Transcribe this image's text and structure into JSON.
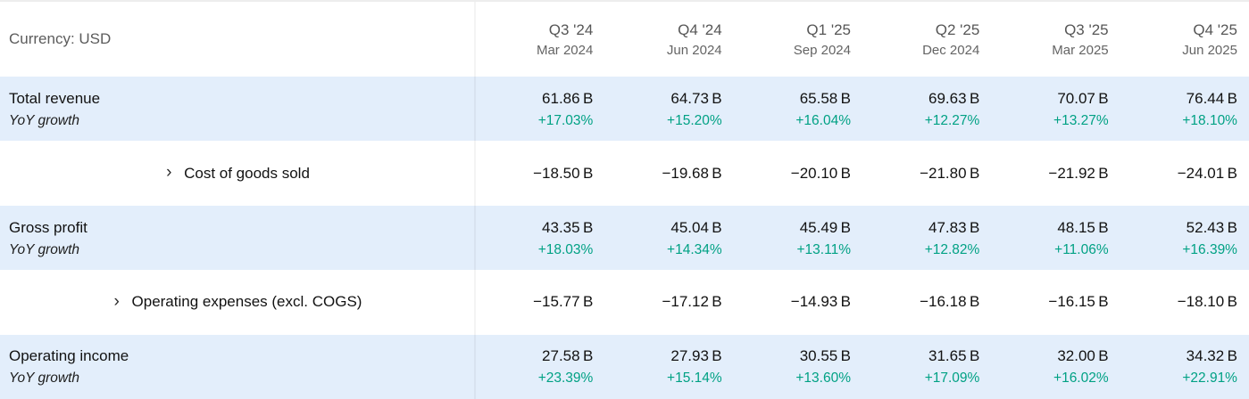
{
  "header": {
    "currency_label": "Currency: USD",
    "columns": [
      {
        "quarter": "Q3 '24",
        "date": "Mar 2024"
      },
      {
        "quarter": "Q4 '24",
        "date": "Jun 2024"
      },
      {
        "quarter": "Q1 '25",
        "date": "Sep 2024"
      },
      {
        "quarter": "Q2 '25",
        "date": "Dec 2024"
      },
      {
        "quarter": "Q3 '25",
        "date": "Mar 2025"
      },
      {
        "quarter": "Q4 '25",
        "date": "Jun 2025"
      }
    ]
  },
  "rows": [
    {
      "label": "Total revenue",
      "sub_label": "YoY growth",
      "values": [
        "61.86 B",
        "64.73 B",
        "65.58 B",
        "69.63 B",
        "70.07 B",
        "76.44 B"
      ],
      "growth": [
        "+17.03%",
        "+15.20%",
        "+16.04%",
        "+12.27%",
        "+13.27%",
        "+18.10%"
      ]
    },
    {
      "label": "Cost of goods sold",
      "chevron": "›",
      "values": [
        "−18.50 B",
        "−19.68 B",
        "−20.10 B",
        "−21.80 B",
        "−21.92 B",
        "−24.01 B"
      ]
    },
    {
      "label": "Gross profit",
      "sub_label": "YoY growth",
      "values": [
        "43.35 B",
        "45.04 B",
        "45.49 B",
        "47.83 B",
        "48.15 B",
        "52.43 B"
      ],
      "growth": [
        "+18.03%",
        "+14.34%",
        "+13.11%",
        "+12.82%",
        "+11.06%",
        "+16.39%"
      ]
    },
    {
      "label": "Operating expenses (excl. COGS)",
      "chevron": "›",
      "values": [
        "−15.77 B",
        "−17.12 B",
        "−14.93 B",
        "−16.18 B",
        "−16.15 B",
        "−18.10 B"
      ]
    },
    {
      "label": "Operating income",
      "sub_label": "YoY growth",
      "values": [
        "27.58 B",
        "27.93 B",
        "30.55 B",
        "31.65 B",
        "32.00 B",
        "34.32 B"
      ],
      "growth": [
        "+23.39%",
        "+15.14%",
        "+13.60%",
        "+17.09%",
        "+16.02%",
        "+22.91%"
      ]
    }
  ],
  "colors": {
    "highlight_row_bg": "#e3eefb",
    "positive_growth": "#00a184",
    "header_text": "#5c5c5c",
    "value_text": "#121212"
  }
}
